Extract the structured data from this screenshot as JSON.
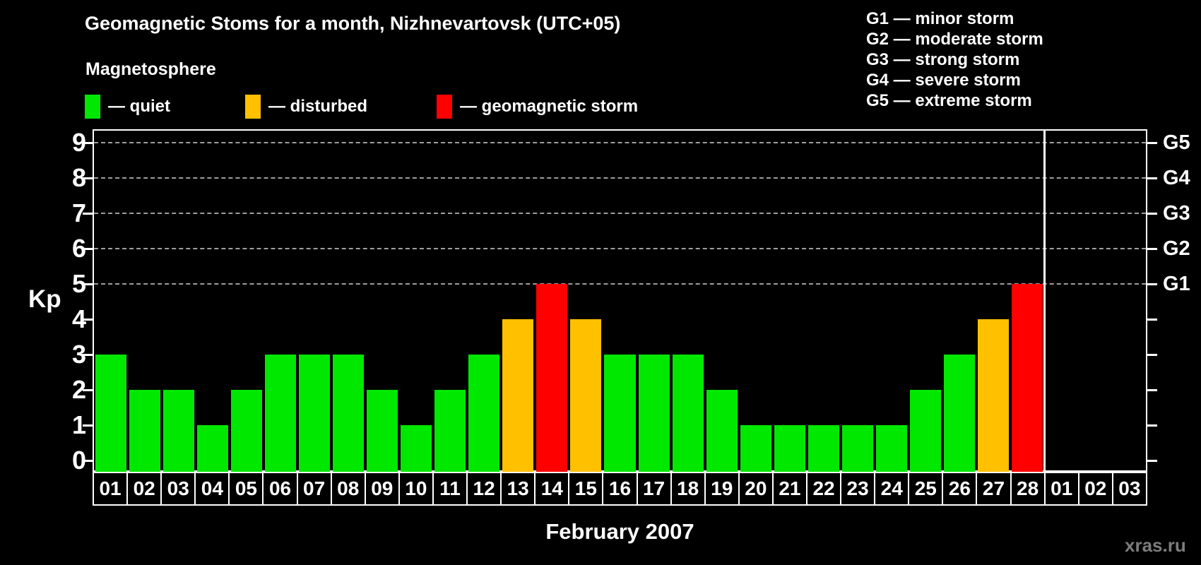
{
  "title": "Geomagnetic Stoms for a month, Nizhnevartovsk (UTC+05)",
  "legend": {
    "heading": "Magnetosphere",
    "items": [
      {
        "label": "— quiet",
        "status": "quiet",
        "color": "#00e800"
      },
      {
        "label": "— disturbed",
        "status": "disturbed",
        "color": "#ffc000"
      },
      {
        "label": "— geomagnetic storm",
        "status": "storm",
        "color": "#ff0000"
      }
    ]
  },
  "storm_scale": [
    {
      "code": "G1",
      "label": "G1 — minor storm"
    },
    {
      "code": "G2",
      "label": "G2 — moderate storm"
    },
    {
      "code": "G3",
      "label": "G3 — strong storm"
    },
    {
      "code": "G4",
      "label": "G4 — severe storm"
    },
    {
      "code": "G5",
      "label": "G5 — extreme storm"
    }
  ],
  "chart_data": {
    "type": "bar",
    "title": "Geomagnetic Stoms for a month, Nizhnevartovsk (UTC+05)",
    "xlabel": "February 2007",
    "ylabel": "Kp",
    "ylim": [
      0,
      9
    ],
    "yticks": [
      0,
      1,
      2,
      3,
      4,
      5,
      6,
      7,
      8,
      9
    ],
    "grid_values": [
      5,
      6,
      7,
      8,
      9
    ],
    "grid_style": "dashed",
    "legend_position": "top-left",
    "right_axis_labels": [
      {
        "value": 9,
        "label": "G5"
      },
      {
        "value": 8,
        "label": "G4"
      },
      {
        "value": 7,
        "label": "G3"
      },
      {
        "value": 6,
        "label": "G2"
      },
      {
        "value": 5,
        "label": "G1"
      }
    ],
    "categories": [
      "01",
      "02",
      "03",
      "04",
      "05",
      "06",
      "07",
      "08",
      "09",
      "10",
      "11",
      "12",
      "13",
      "14",
      "15",
      "16",
      "17",
      "18",
      "19",
      "20",
      "21",
      "22",
      "23",
      "24",
      "25",
      "26",
      "27",
      "28",
      "01",
      "02",
      "03"
    ],
    "values": [
      3,
      2,
      2,
      1,
      2,
      3,
      3,
      3,
      2,
      1,
      2,
      3,
      4,
      5,
      4,
      3,
      3,
      3,
      2,
      1,
      1,
      1,
      1,
      1,
      2,
      3,
      4,
      5,
      null,
      null,
      null
    ],
    "statuses": [
      "quiet",
      "quiet",
      "quiet",
      "quiet",
      "quiet",
      "quiet",
      "quiet",
      "quiet",
      "quiet",
      "quiet",
      "quiet",
      "quiet",
      "disturbed",
      "storm",
      "disturbed",
      "quiet",
      "quiet",
      "quiet",
      "quiet",
      "quiet",
      "quiet",
      "quiet",
      "quiet",
      "quiet",
      "quiet",
      "quiet",
      "disturbed",
      "storm",
      null,
      null,
      null
    ],
    "colors": {
      "quiet": "#00e800",
      "disturbed": "#ffc000",
      "storm": "#ff0000"
    },
    "separator_after_category_index": 27
  },
  "footer": {
    "caption": "February 2007",
    "watermark": "xras.ru"
  }
}
